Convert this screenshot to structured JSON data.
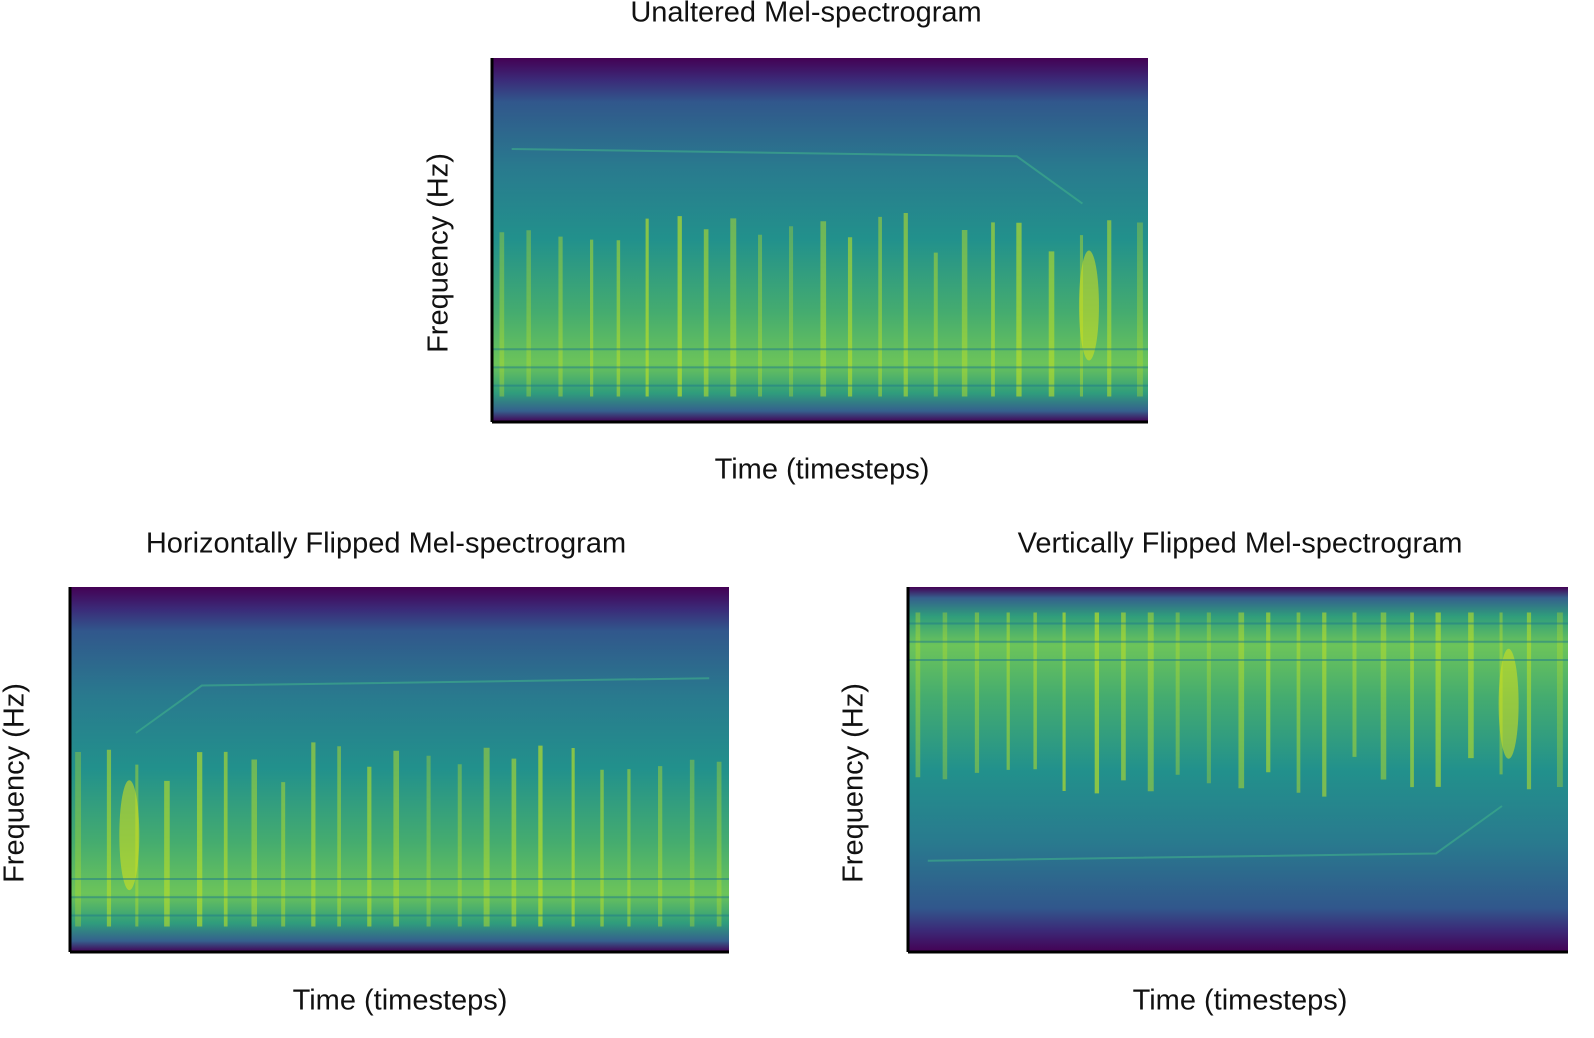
{
  "panels": [
    {
      "title": "Unaltered Mel-spectrogram",
      "xlabel": "Time (timesteps)",
      "ylabel": "Frequency (Hz)"
    },
    {
      "title": "Horizontally Flipped Mel-spectrogram",
      "xlabel": "Time (timesteps)",
      "ylabel": "Frequency (Hz)"
    },
    {
      "title": "Vertically Flipped Mel-spectrogram",
      "xlabel": "Time (timesteps)",
      "ylabel": "Frequency (Hz)"
    }
  ]
}
